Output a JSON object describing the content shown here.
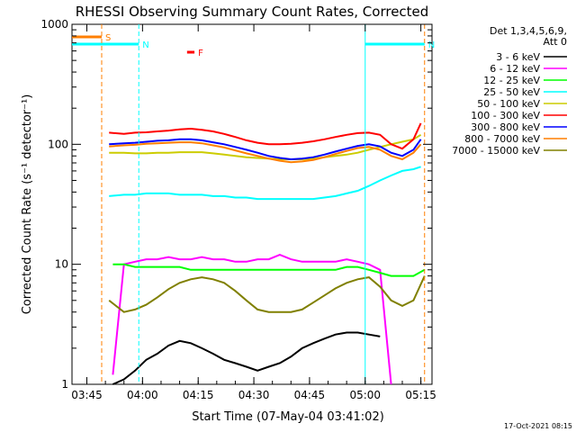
{
  "chart_data": {
    "type": "line",
    "title": "RHESSI Observing Summary Count Rates, Corrected",
    "xlabel": "Start Time (07-May-04 03:41:02)",
    "ylabel": "Corrected Count Rate (s⁻¹ detector⁻¹)",
    "footer": "17-Oct-2021 08:15",
    "y_scale": "log",
    "ylim": [
      1,
      1000
    ],
    "xlim": [
      "03:41",
      "05:18"
    ],
    "x_ticks": [
      "03:45",
      "04:00",
      "04:15",
      "04:30",
      "04:45",
      "05:00",
      "05:15"
    ],
    "y_ticks": [
      "1",
      "10",
      "100",
      "1000"
    ],
    "grid": false,
    "legend": {
      "position": "top-right",
      "header": [
        "Det 1,3,4,5,6,9,",
        "Att 0"
      ]
    },
    "flags": [
      {
        "label": "S",
        "color": "#ff7f00",
        "start": "03:41",
        "end": "03:49"
      },
      {
        "label": "N",
        "color": "#00ffff",
        "start": "03:41",
        "end": "03:59"
      },
      {
        "label": "F",
        "color": "#ff0000",
        "start": "04:12",
        "end": "04:14"
      },
      {
        "label": "N",
        "color": "#00ffff",
        "start": "05:00",
        "end": "05:16"
      }
    ],
    "markers": [
      {
        "time": "03:49",
        "color": "#ff7f00",
        "style": "dashed"
      },
      {
        "time": "03:59",
        "color": "#00ffff",
        "style": "dashed"
      },
      {
        "time": "05:00",
        "color": "#00ffff",
        "style": "solid"
      },
      {
        "time": "05:16",
        "color": "#ff7f00",
        "style": "dashed"
      }
    ],
    "series": [
      {
        "name": "3 - 6 keV",
        "color": "#000000",
        "x": [
          "03:52",
          "03:55",
          "03:58",
          "04:01",
          "04:04",
          "04:07",
          "04:10",
          "04:13",
          "04:16",
          "04:19",
          "04:22",
          "04:25",
          "04:28",
          "04:31",
          "04:34",
          "04:37",
          "04:40",
          "04:43",
          "04:46",
          "04:49",
          "04:52",
          "04:55",
          "04:58",
          "05:01",
          "05:04"
        ],
        "y": [
          1,
          1.1,
          1.3,
          1.6,
          1.8,
          2.1,
          2.3,
          2.2,
          2.0,
          1.8,
          1.6,
          1.5,
          1.4,
          1.3,
          1.4,
          1.5,
          1.7,
          2.0,
          2.2,
          2.4,
          2.6,
          2.7,
          2.7,
          2.6,
          2.5
        ]
      },
      {
        "name": "6 - 12 keV",
        "color": "#ff00ff",
        "x": [
          "03:52",
          "03:55",
          "03:58",
          "04:01",
          "04:04",
          "04:07",
          "04:10",
          "04:13",
          "04:16",
          "04:19",
          "04:22",
          "04:25",
          "04:28",
          "04:31",
          "04:34",
          "04:37",
          "04:40",
          "04:43",
          "04:46",
          "04:49",
          "04:52",
          "04:55",
          "04:58",
          "05:01",
          "05:04",
          "05:07"
        ],
        "y": [
          1.2,
          10,
          10.5,
          11,
          11,
          11.5,
          11,
          11,
          11.5,
          11,
          11,
          10.5,
          10.5,
          11,
          11,
          12,
          11,
          10.5,
          10.5,
          10.5,
          10.5,
          11,
          10.5,
          10,
          9,
          1
        ]
      },
      {
        "name": "12 - 25 keV",
        "color": "#00ff00",
        "x": [
          "03:52",
          "03:55",
          "03:58",
          "04:01",
          "04:04",
          "04:07",
          "04:10",
          "04:13",
          "04:16",
          "04:19",
          "04:22",
          "04:25",
          "04:28",
          "04:31",
          "04:34",
          "04:37",
          "04:40",
          "04:43",
          "04:46",
          "04:49",
          "04:52",
          "04:55",
          "04:58",
          "05:01",
          "05:04",
          "05:07",
          "05:10",
          "05:13",
          "05:16"
        ],
        "y": [
          10,
          10,
          9.5,
          9.5,
          9.5,
          9.5,
          9.5,
          9,
          9,
          9,
          9,
          9,
          9,
          9,
          9,
          9,
          9,
          9,
          9,
          9,
          9,
          9.5,
          9.5,
          9,
          8.5,
          8,
          8,
          8,
          9
        ]
      },
      {
        "name": "25 - 50 keV",
        "color": "#00ffff",
        "x": [
          "03:51",
          "03:55",
          "03:58",
          "04:01",
          "04:04",
          "04:07",
          "04:10",
          "04:13",
          "04:16",
          "04:19",
          "04:22",
          "04:25",
          "04:28",
          "04:31",
          "04:34",
          "04:37",
          "04:40",
          "04:43",
          "04:46",
          "04:49",
          "04:52",
          "04:55",
          "04:58",
          "05:01",
          "05:04",
          "05:07",
          "05:10",
          "05:13",
          "05:15"
        ],
        "y": [
          37,
          38,
          38,
          39,
          39,
          39,
          38,
          38,
          38,
          37,
          37,
          36,
          36,
          35,
          35,
          35,
          35,
          35,
          35,
          36,
          37,
          39,
          41,
          45,
          50,
          55,
          60,
          62,
          65
        ]
      },
      {
        "name": "50 - 100 keV",
        "color": "#cccc00",
        "x": [
          "03:51",
          "03:55",
          "03:58",
          "04:01",
          "04:04",
          "04:07",
          "04:10",
          "04:13",
          "04:16",
          "04:19",
          "04:22",
          "04:25",
          "04:28",
          "04:31",
          "04:34",
          "04:37",
          "04:40",
          "04:43",
          "04:46",
          "04:49",
          "04:52",
          "04:55",
          "04:58",
          "05:01",
          "05:04",
          "05:07",
          "05:10",
          "05:13",
          "05:15"
        ],
        "y": [
          85,
          85,
          84,
          84,
          85,
          85,
          86,
          86,
          86,
          84,
          82,
          80,
          78,
          77,
          76,
          75,
          75,
          75,
          76,
          78,
          80,
          82,
          85,
          90,
          95,
          100,
          105,
          110,
          120
        ]
      },
      {
        "name": "100 - 300 keV",
        "color": "#ff0000",
        "x": [
          "03:51",
          "03:55",
          "03:58",
          "04:01",
          "04:04",
          "04:07",
          "04:10",
          "04:13",
          "04:16",
          "04:19",
          "04:22",
          "04:25",
          "04:28",
          "04:31",
          "04:34",
          "04:37",
          "04:40",
          "04:43",
          "04:46",
          "04:49",
          "04:52",
          "04:55",
          "04:58",
          "05:01",
          "05:04",
          "05:07",
          "05:10",
          "05:13",
          "05:15"
        ],
        "y": [
          125,
          122,
          125,
          126,
          128,
          130,
          133,
          135,
          132,
          128,
          122,
          115,
          108,
          103,
          100,
          100,
          101,
          103,
          106,
          110,
          115,
          120,
          124,
          125,
          120,
          100,
          92,
          110,
          150
        ]
      },
      {
        "name": "300 - 800 keV",
        "color": "#0000ff",
        "x": [
          "03:51",
          "03:55",
          "03:58",
          "04:01",
          "04:04",
          "04:07",
          "04:10",
          "04:13",
          "04:16",
          "04:19",
          "04:22",
          "04:25",
          "04:28",
          "04:31",
          "04:34",
          "04:37",
          "04:40",
          "04:43",
          "04:46",
          "04:49",
          "04:52",
          "04:55",
          "04:58",
          "05:01",
          "05:04",
          "05:07",
          "05:10",
          "05:13",
          "05:15"
        ],
        "y": [
          100,
          102,
          103,
          105,
          107,
          108,
          110,
          110,
          108,
          104,
          100,
          95,
          90,
          85,
          80,
          77,
          75,
          76,
          78,
          82,
          87,
          92,
          97,
          100,
          96,
          85,
          80,
          90,
          110
        ]
      },
      {
        "name": "800 - 7000 keV",
        "color": "#ff7f00",
        "x": [
          "03:51",
          "03:55",
          "03:58",
          "04:01",
          "04:04",
          "04:07",
          "04:10",
          "04:13",
          "04:16",
          "04:19",
          "04:22",
          "04:25",
          "04:28",
          "04:31",
          "04:34",
          "04:37",
          "04:40",
          "04:43",
          "04:46",
          "04:49",
          "04:52",
          "04:55",
          "04:58",
          "05:01",
          "05:04",
          "05:07",
          "05:10",
          "05:13",
          "05:15"
        ],
        "y": [
          96,
          98,
          99,
          101,
          102,
          103,
          104,
          104,
          102,
          98,
          94,
          89,
          84,
          80,
          76,
          73,
          71,
          72,
          74,
          78,
          83,
          88,
          93,
          95,
          90,
          80,
          75,
          85,
          100
        ]
      },
      {
        "name": "7000 - 15000 keV",
        "color": "#808000",
        "x": [
          "03:51",
          "03:55",
          "03:58",
          "04:01",
          "04:04",
          "04:07",
          "04:10",
          "04:13",
          "04:16",
          "04:19",
          "04:22",
          "04:25",
          "04:28",
          "04:31",
          "04:34",
          "04:37",
          "04:40",
          "04:43",
          "04:46",
          "04:49",
          "04:52",
          "04:55",
          "04:58",
          "05:01",
          "05:04",
          "05:07",
          "05:10",
          "05:13",
          "05:16"
        ],
        "y": [
          5,
          4,
          4.2,
          4.6,
          5.3,
          6.2,
          7,
          7.5,
          7.8,
          7.5,
          7,
          6,
          5,
          4.2,
          4,
          4,
          4,
          4.2,
          4.8,
          5.5,
          6.3,
          7,
          7.5,
          7.8,
          6.5,
          5,
          4.5,
          5,
          8
        ]
      }
    ]
  }
}
